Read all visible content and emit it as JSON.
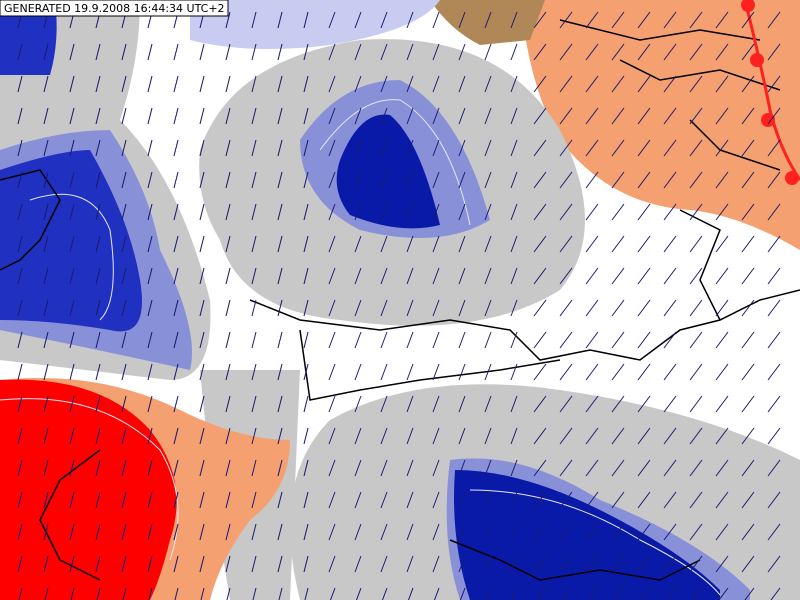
{
  "header": {
    "timestamp": "GENERATED 19.9.2008 16:44:34 UTC+2"
  }
}
